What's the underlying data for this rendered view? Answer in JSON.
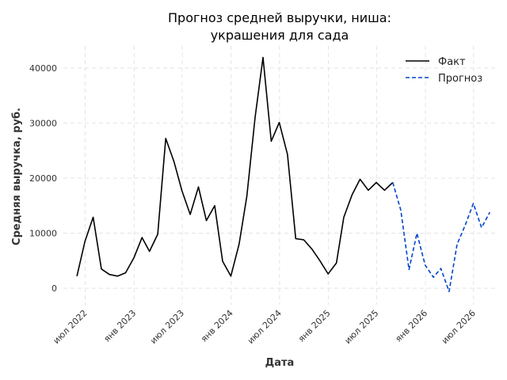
{
  "chart_data": {
    "type": "line",
    "title_lines": [
      "Прогноз средней выручки, ниша:",
      "украшения для сада"
    ],
    "xlabel": "Дата",
    "ylabel": "Средняя выручка, руб.",
    "ylim": [
      -3000,
      44000
    ],
    "xlim": [
      "2022-04-10",
      "2026-09-20"
    ],
    "y_ticks": [
      0,
      10000,
      20000,
      30000,
      40000
    ],
    "x_ticks": [
      {
        "date": "2022-07-01",
        "label": "июл 2022"
      },
      {
        "date": "2023-01-01",
        "label": "янв 2023"
      },
      {
        "date": "2023-07-01",
        "label": "июл 2023"
      },
      {
        "date": "2024-01-01",
        "label": "янв 2024"
      },
      {
        "date": "2024-07-01",
        "label": "июл 2024"
      },
      {
        "date": "2025-01-01",
        "label": "янв 2025"
      },
      {
        "date": "2025-07-01",
        "label": "июл 2025"
      },
      {
        "date": "2026-01-01",
        "label": "янв 2026"
      },
      {
        "date": "2026-07-01",
        "label": "июл 2026"
      }
    ],
    "grid": true,
    "legend_position": "top-right",
    "series": [
      {
        "name": "Факт",
        "color": "#000000",
        "style": "solid",
        "x": [
          "2022-05-31",
          "2022-06-30",
          "2022-07-31",
          "2022-08-31",
          "2022-09-30",
          "2022-10-31",
          "2022-11-30",
          "2022-12-31",
          "2023-01-31",
          "2023-02-28",
          "2023-03-31",
          "2023-04-30",
          "2023-05-31",
          "2023-06-30",
          "2023-07-31",
          "2023-08-31",
          "2023-09-30",
          "2023-10-31",
          "2023-11-30",
          "2023-12-31",
          "2024-01-31",
          "2024-02-29",
          "2024-03-31",
          "2024-04-30",
          "2024-05-31",
          "2024-06-30",
          "2024-07-31",
          "2024-08-31",
          "2024-09-30",
          "2024-10-31",
          "2024-11-30",
          "2024-12-31",
          "2025-01-31",
          "2025-02-28",
          "2025-03-31",
          "2025-04-30",
          "2025-05-31",
          "2025-06-30",
          "2025-07-31",
          "2025-08-31"
        ],
        "values": [
          2200,
          8500,
          12900,
          3500,
          2500,
          2200,
          2800,
          5500,
          9200,
          6700,
          9800,
          27200,
          23000,
          17700,
          13400,
          18400,
          12300,
          15000,
          4900,
          2200,
          8000,
          16700,
          31000,
          41900,
          26700,
          30100,
          24300,
          9000,
          8800,
          7100,
          5000,
          2600,
          4600,
          12900,
          17000,
          19800,
          17800,
          19200,
          17800,
          19200
        ]
      },
      {
        "name": "Прогноз",
        "color": "#0044cc",
        "style": "dashed",
        "x": [
          "2025-08-31",
          "2025-09-30",
          "2025-10-31",
          "2025-11-30",
          "2025-12-31",
          "2026-01-31",
          "2026-02-28",
          "2026-03-31",
          "2026-04-30",
          "2026-05-31",
          "2026-06-30",
          "2026-07-31",
          "2026-08-31"
        ],
        "values": [
          19200,
          14200,
          3400,
          10000,
          4200,
          2000,
          3600,
          -600,
          8000,
          11500,
          15400,
          11000,
          13800
        ]
      }
    ]
  }
}
